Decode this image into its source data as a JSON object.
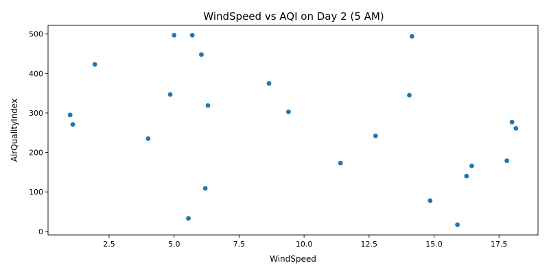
{
  "chart_data": {
    "type": "scatter",
    "title": "WindSpeed vs AQI on Day 2 (5 AM)",
    "xlabel": "WindSpeed",
    "ylabel": "AirQualityIndex",
    "xlim": [
      0.15,
      19.0
    ],
    "ylim": [
      -9,
      522
    ],
    "xticks": [
      2.5,
      5.0,
      7.5,
      10.0,
      12.5,
      15.0,
      17.5
    ],
    "xtick_labels": [
      "2.5",
      "5.0",
      "7.5",
      "10.0",
      "12.5",
      "15.0",
      "17.5"
    ],
    "yticks": [
      0,
      100,
      200,
      300,
      400,
      500
    ],
    "ytick_labels": [
      "0",
      "100",
      "200",
      "300",
      "400",
      "500"
    ],
    "grid": false,
    "legend": "none",
    "series": [
      {
        "color": "#1f77b4",
        "x": [
          1.0,
          1.1,
          1.95,
          4.0,
          4.85,
          5.0,
          5.55,
          5.7,
          6.05,
          6.2,
          6.3,
          8.65,
          9.4,
          11.4,
          12.75,
          14.05,
          14.15,
          14.85,
          15.9,
          16.25,
          16.45,
          17.8,
          18.0,
          18.15
        ],
        "y": [
          295,
          271,
          423,
          235,
          347,
          497,
          33,
          497,
          448,
          109,
          319,
          375,
          303,
          173,
          242,
          345,
          494,
          78,
          17,
          140,
          166,
          179,
          277,
          261
        ]
      }
    ]
  }
}
